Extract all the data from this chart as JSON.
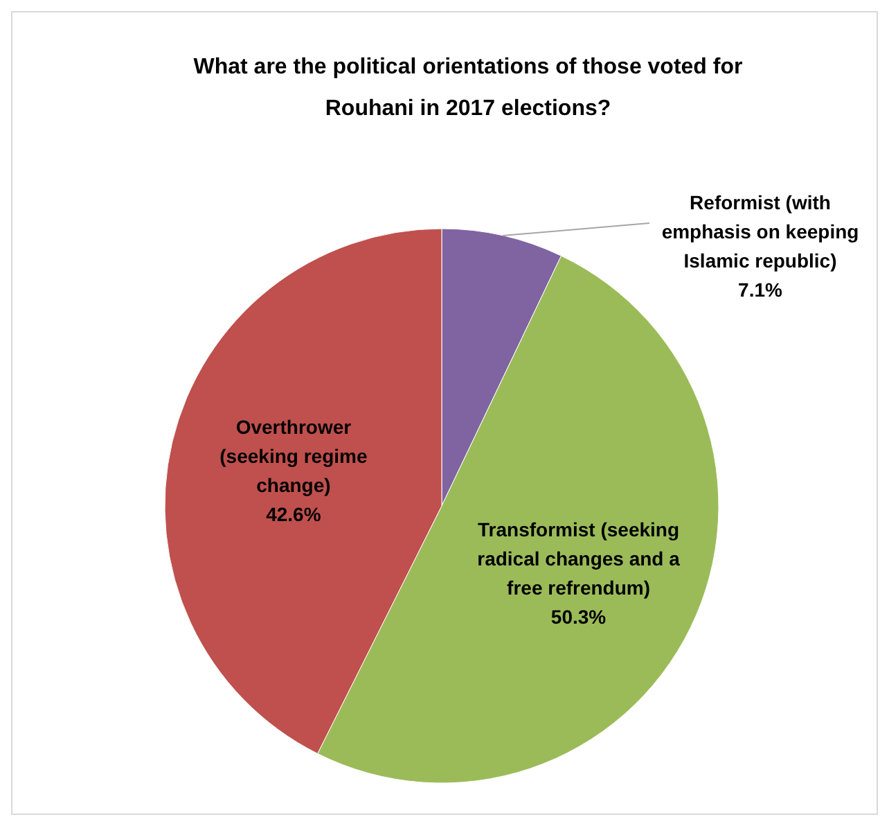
{
  "chart_data": {
    "type": "pie",
    "title": "What are the political orientations of those voted for Rouhani in 2017 elections?",
    "categories": [
      "Reformist (with emphasis on keeping Islamic republic)",
      "Transformist (seeking radical changes and a free refrendum)",
      "Overthrower (seeking regime change)"
    ],
    "values": [
      7.1,
      50.3,
      42.6
    ],
    "colors": [
      "#8064a2",
      "#9bbb59",
      "#c0504d"
    ],
    "value_labels": [
      "7.1%",
      "50.3%",
      "42.6%"
    ]
  }
}
